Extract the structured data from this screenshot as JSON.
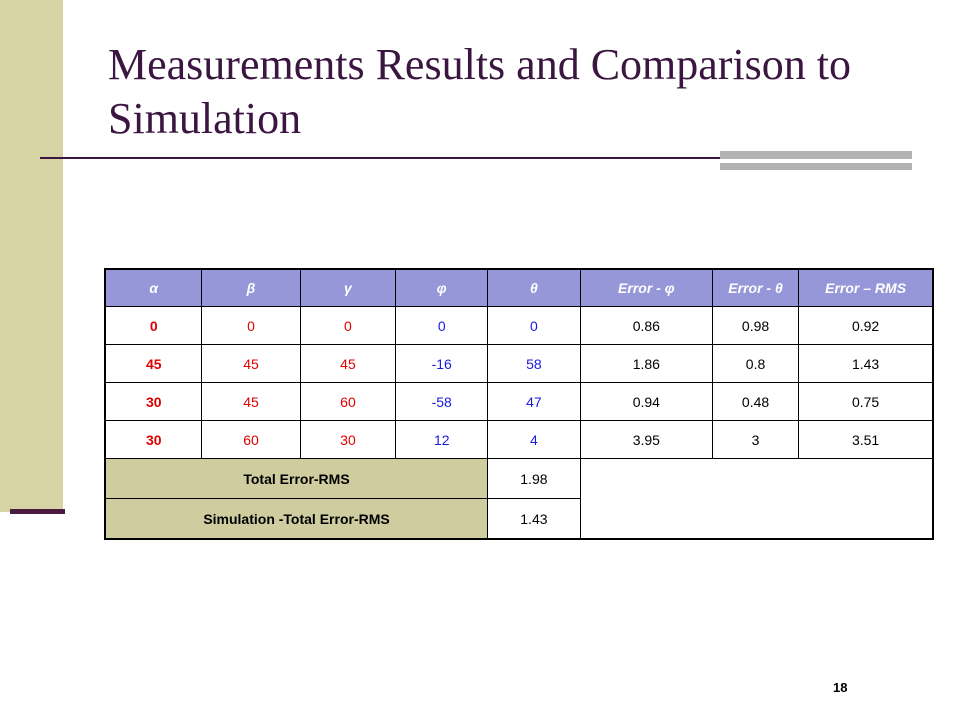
{
  "slide": {
    "title": "Measurements Results and Comparison to Simulation",
    "page_number": "18"
  },
  "table": {
    "headers": [
      "α",
      "β",
      "γ",
      "φ",
      "θ",
      "Error - φ",
      "Error - θ",
      "Error – RMS"
    ],
    "rows": [
      [
        "0",
        "0",
        "0",
        "0",
        "0",
        "0.86",
        "0.98",
        "0.92"
      ],
      [
        "45",
        "45",
        "45",
        "-16",
        "58",
        "1.86",
        "0.8",
        "1.43"
      ],
      [
        "30",
        "45",
        "60",
        "-58",
        "47",
        "0.94",
        "0.48",
        "0.75"
      ],
      [
        "30",
        "60",
        "30",
        "12",
        "4",
        "3.95",
        "3",
        "3.51"
      ]
    ],
    "summary": [
      {
        "label": "Total Error-RMS",
        "value": "1.98"
      },
      {
        "label": "Simulation -Total Error-RMS",
        "value": "1.43"
      }
    ]
  },
  "colors": {
    "sidebar": "#d6d4a4",
    "title": "#3a1640",
    "header_fill": "#9597d9",
    "input_angles": "#e00000",
    "measured_angles": "#1a1ae0",
    "summary_label_fill": "#cfcc9f"
  }
}
